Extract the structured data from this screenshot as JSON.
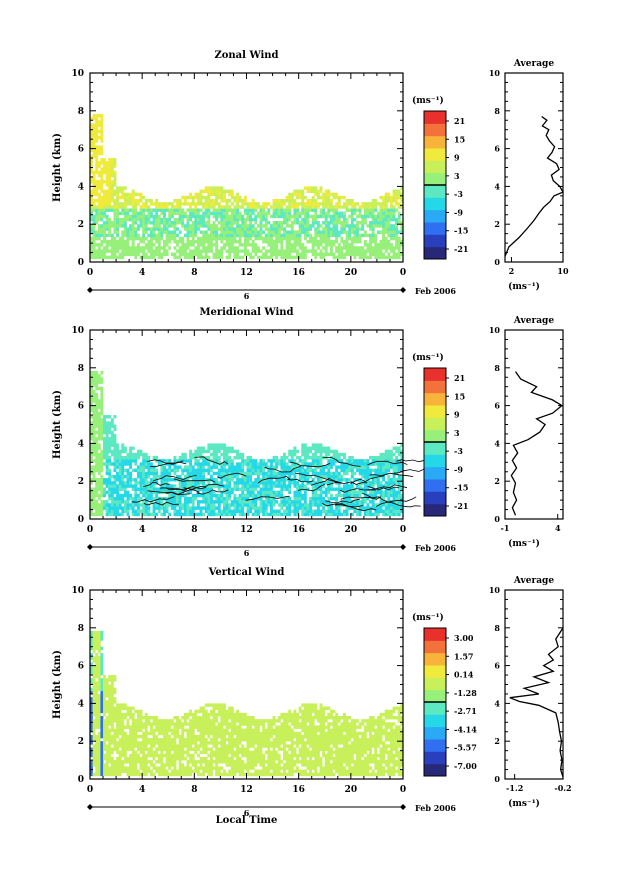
{
  "figure": {
    "date_label": "Feb 2006",
    "local_time_label": "Local Time",
    "average_title": "Average",
    "height_label": "Height (km)",
    "unit_label": "(ms⁻¹)",
    "day_label": "6"
  },
  "chart_data": [
    {
      "type": "heatmap",
      "title": "Zonal Wind",
      "ylabel": "Height (km)",
      "xlim": [
        0,
        24
      ],
      "ylim": [
        0,
        10
      ],
      "x_ticks": [
        "0",
        "4",
        "8",
        "12",
        "16",
        "20",
        "0"
      ],
      "y_ticks": [
        "0",
        "2",
        "4",
        "6",
        "8",
        "10"
      ],
      "colorbar_unit": "(ms⁻¹)",
      "colorbar_ticks": [
        "21",
        "15",
        "9",
        "3",
        "-3",
        "-9",
        "-15",
        "-21"
      ],
      "data_summary": "Mostly 0 to 9 m/s westerly, strongest near 2-4 km",
      "profile": {
        "title": "Average",
        "xlabel": "(ms⁻¹)",
        "x_ticks": [
          "2",
          "10"
        ],
        "xlim": [
          1,
          10
        ],
        "y_ticks": [
          "0",
          "2",
          "4",
          "6",
          "8",
          "10"
        ],
        "points": [
          [
            1.0,
            0.3
          ],
          [
            1.6,
            0.8
          ],
          [
            3.2,
            1.3
          ],
          [
            4.5,
            1.8
          ],
          [
            5.5,
            2.2
          ],
          [
            6.3,
            2.6
          ],
          [
            7.0,
            2.9
          ],
          [
            8.0,
            3.2
          ],
          [
            8.6,
            3.5
          ],
          [
            10.0,
            3.7
          ],
          [
            9.5,
            4.0
          ],
          [
            8.5,
            4.3
          ],
          [
            8.2,
            4.6
          ],
          [
            9.4,
            4.9
          ],
          [
            9.0,
            5.2
          ],
          [
            7.6,
            5.5
          ],
          [
            8.3,
            5.8
          ],
          [
            8.7,
            6.1
          ],
          [
            7.9,
            6.4
          ],
          [
            7.4,
            6.7
          ],
          [
            7.8,
            7.0
          ],
          [
            6.8,
            7.2
          ],
          [
            7.5,
            7.5
          ],
          [
            6.7,
            7.7
          ]
        ]
      }
    },
    {
      "type": "heatmap",
      "title": "Meridional Wind",
      "ylabel": "Height (km)",
      "xlim": [
        0,
        24
      ],
      "ylim": [
        0,
        10
      ],
      "x_ticks": [
        "0",
        "4",
        "8",
        "12",
        "16",
        "20",
        "0"
      ],
      "y_ticks": [
        "0",
        "2",
        "4",
        "6",
        "8",
        "10"
      ],
      "colorbar_unit": "(ms⁻¹)",
      "colorbar_ticks": [
        "21",
        "15",
        "9",
        "3",
        "-3",
        "-9",
        "-15",
        "-21"
      ],
      "data_summary": "Weak southward (negative) flow below 3.5 km with contours",
      "profile": {
        "title": "Average",
        "xlabel": "(ms⁻¹)",
        "x_ticks": [
          "-1",
          "4"
        ],
        "xlim": [
          -1,
          4.5
        ],
        "y_ticks": [
          "0",
          "2",
          "4",
          "6",
          "8",
          "10"
        ],
        "points": [
          [
            0.0,
            0.2
          ],
          [
            -0.3,
            0.6
          ],
          [
            0.1,
            1.0
          ],
          [
            -0.2,
            1.4
          ],
          [
            0.0,
            1.9
          ],
          [
            -0.4,
            2.3
          ],
          [
            0.1,
            2.7
          ],
          [
            -0.3,
            3.1
          ],
          [
            0.2,
            3.5
          ],
          [
            -0.2,
            3.9
          ],
          [
            1.2,
            4.2
          ],
          [
            2.3,
            4.6
          ],
          [
            2.8,
            5.0
          ],
          [
            2.0,
            5.3
          ],
          [
            3.5,
            5.6
          ],
          [
            4.4,
            6.0
          ],
          [
            3.5,
            6.3
          ],
          [
            1.5,
            6.7
          ],
          [
            2.0,
            7.0
          ],
          [
            0.5,
            7.4
          ],
          [
            0.0,
            7.8
          ]
        ]
      }
    },
    {
      "type": "heatmap",
      "title": "Vertical Wind",
      "ylabel": "Height (km)",
      "xlabel": "Local Time",
      "xlim": [
        0,
        24
      ],
      "ylim": [
        0,
        10
      ],
      "x_ticks": [
        "0",
        "4",
        "8",
        "12",
        "16",
        "20",
        "0"
      ],
      "y_ticks": [
        "0",
        "2",
        "4",
        "6",
        "8",
        "10"
      ],
      "colorbar_unit": "(ms⁻¹)",
      "colorbar_ticks": [
        "3.00",
        "1.57",
        "0.14",
        "-1.28",
        "-2.71",
        "-4.14",
        "-5.57",
        "-7.00"
      ],
      "data_summary": "Near-zero vertical wind below 3.5 km, strong downdrafts near 0-1 LT",
      "profile": {
        "title": "Average",
        "xlabel": "(ms⁻¹)",
        "x_ticks": [
          "-1.2",
          "-0.2"
        ],
        "xlim": [
          -1.4,
          -0.2
        ],
        "y_ticks": [
          "0",
          "2",
          "4",
          "6",
          "8",
          "10"
        ],
        "points": [
          [
            -0.2,
            0.1
          ],
          [
            -0.25,
            0.5
          ],
          [
            -0.22,
            1.0
          ],
          [
            -0.26,
            1.5
          ],
          [
            -0.23,
            2.0
          ],
          [
            -0.27,
            2.5
          ],
          [
            -0.3,
            3.0
          ],
          [
            -0.35,
            3.5
          ],
          [
            -0.7,
            3.9
          ],
          [
            -1.1,
            4.1
          ],
          [
            -1.3,
            4.3
          ],
          [
            -0.7,
            4.5
          ],
          [
            -1.0,
            4.8
          ],
          [
            -0.5,
            5.1
          ],
          [
            -0.8,
            5.4
          ],
          [
            -0.4,
            5.7
          ],
          [
            -0.6,
            6.0
          ],
          [
            -0.4,
            6.3
          ],
          [
            -0.5,
            6.6
          ],
          [
            -0.3,
            7.0
          ],
          [
            -0.35,
            7.4
          ],
          [
            -0.25,
            7.8
          ],
          [
            -0.2,
            8.0
          ]
        ]
      }
    }
  ],
  "colors": {
    "colorbar": [
      "#282878",
      "#2a3fbd",
      "#2f6ff0",
      "#2aa9f5",
      "#24d8e8",
      "#5ce8c0",
      "#96f07a",
      "#c8f05a",
      "#f0ea3c",
      "#f8b43a",
      "#f3713a",
      "#e8302c"
    ]
  }
}
